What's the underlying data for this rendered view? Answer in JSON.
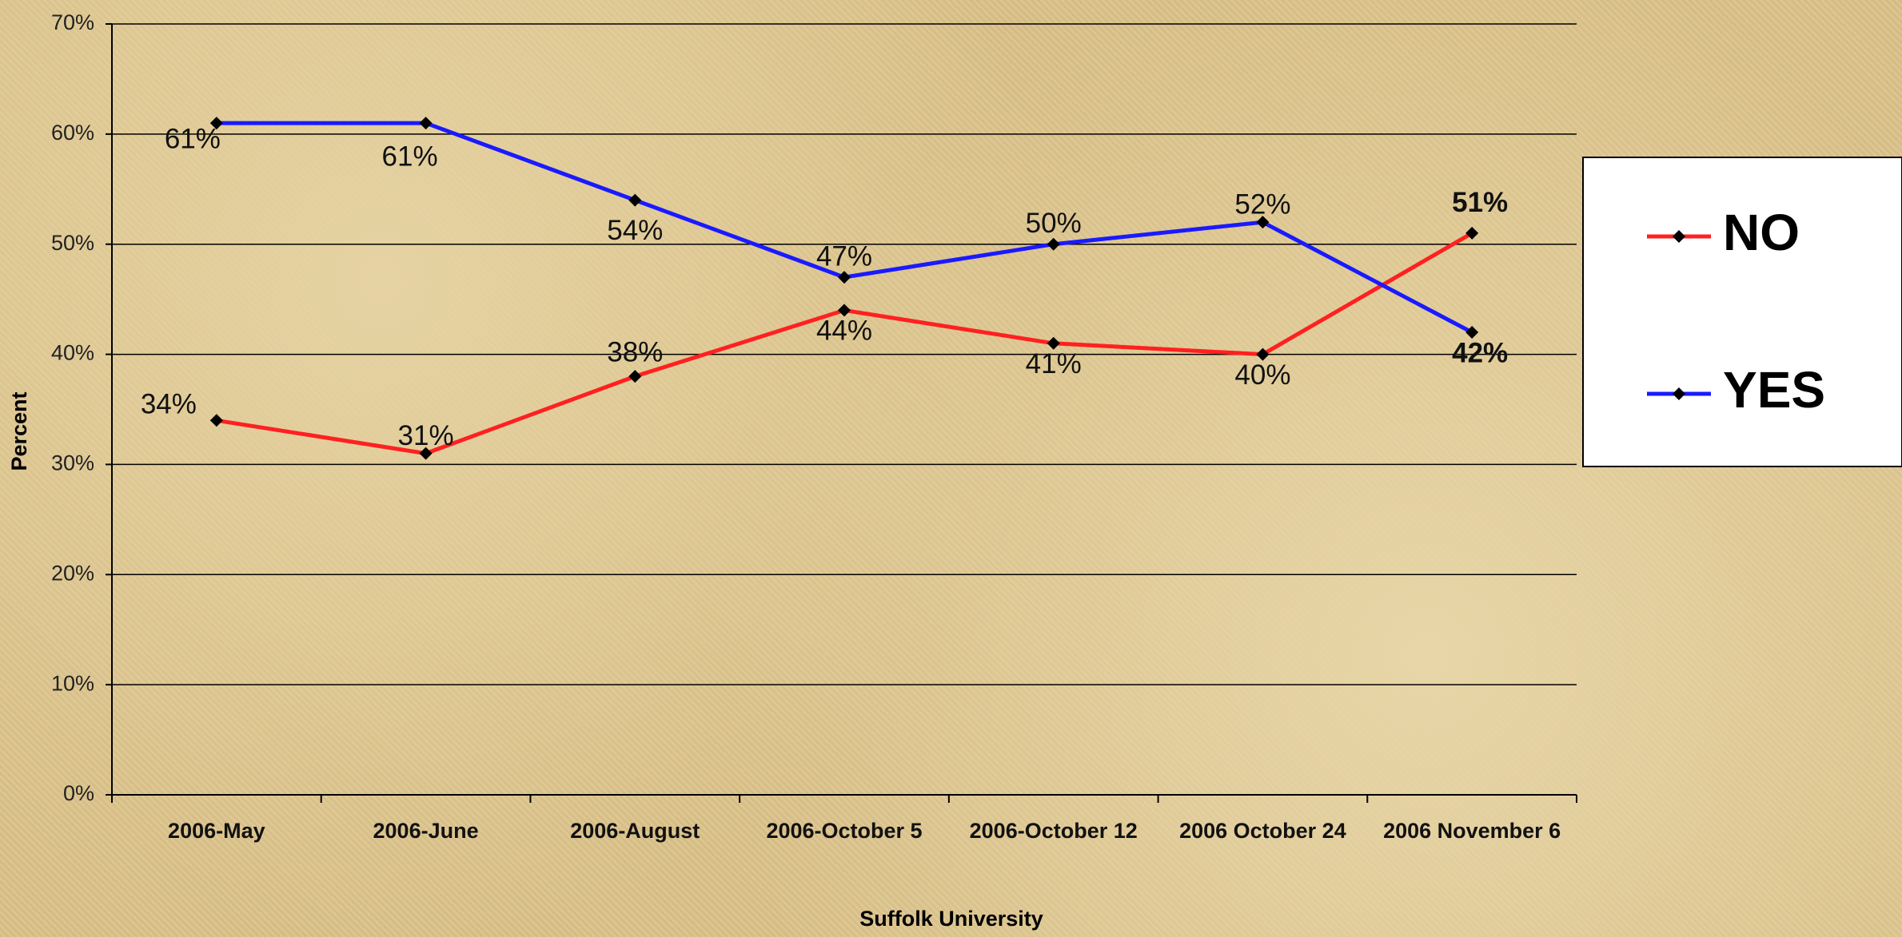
{
  "chart_data": {
    "type": "line",
    "categories": [
      "2006-May",
      "2006-June",
      "2006-August",
      "2006-October 5",
      "2006-October 12",
      "2006 October 24",
      "2006 November 6"
    ],
    "series": [
      {
        "name": "NO",
        "color": "#ff2020",
        "values": [
          34,
          31,
          38,
          44,
          41,
          40,
          51
        ],
        "value_labels": [
          "34%",
          "31%",
          "38%",
          "44%",
          "41%",
          "40%",
          "51%"
        ]
      },
      {
        "name": "YES",
        "color": "#1a1aff",
        "values": [
          61,
          61,
          54,
          47,
          50,
          52,
          42
        ],
        "value_labels": [
          "61%",
          "61%",
          "54%",
          "47%",
          "50%",
          "52%",
          "42%"
        ]
      }
    ],
    "ylim": [
      0,
      70
    ],
    "yticks": [
      {
        "value": 0,
        "label": "0%"
      },
      {
        "value": 10,
        "label": "10%"
      },
      {
        "value": 20,
        "label": "20%"
      },
      {
        "value": 30,
        "label": "30%"
      },
      {
        "value": 40,
        "label": "40%"
      },
      {
        "value": 50,
        "label": "50%"
      },
      {
        "value": 60,
        "label": "60%"
      },
      {
        "value": 70,
        "label": "70%"
      }
    ],
    "x_label": "Suffolk University",
    "y_label": "Percent",
    "grid": true,
    "legend": "right"
  }
}
